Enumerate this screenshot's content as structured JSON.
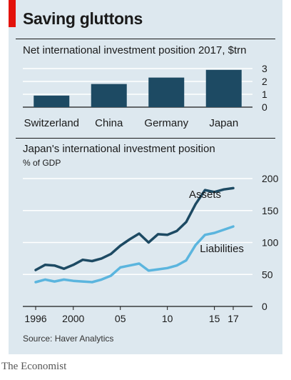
{
  "header": {
    "title": "Saving gluttons"
  },
  "source": "Source: Haver Analytics",
  "brand": "The Economist",
  "colors": {
    "accent_red": "#e3120b",
    "dark_series": "#1d4a63",
    "light_series": "#5bb5de",
    "background": "#dde8ef"
  },
  "chart_data": [
    {
      "type": "bar",
      "title": "Net international investment position 2017, $trn",
      "categories": [
        "Switzerland",
        "China",
        "Germany",
        "Japan"
      ],
      "values": [
        0.9,
        1.8,
        2.3,
        2.9
      ],
      "ylim": [
        0,
        3
      ],
      "yticks": [
        "0",
        "1",
        "2",
        "3"
      ],
      "grid": true
    },
    {
      "type": "line",
      "title": "Japan's international investment position",
      "ylabel": "% of GDP",
      "xlim": [
        1996,
        2017
      ],
      "ylim": [
        0,
        200
      ],
      "xticks": [
        {
          "value": 1996,
          "label": "1996"
        },
        {
          "value": 2000,
          "label": "2000"
        },
        {
          "value": 2005,
          "label": "05"
        },
        {
          "value": 2010,
          "label": "10"
        },
        {
          "value": 2015,
          "label": "15"
        },
        {
          "value": 2017,
          "label": "17"
        }
      ],
      "yticks": [
        "0",
        "50",
        "100",
        "150",
        "200"
      ],
      "grid": true,
      "x": [
        1996,
        1997,
        1998,
        1999,
        2000,
        2001,
        2002,
        2003,
        2004,
        2005,
        2006,
        2007,
        2008,
        2009,
        2010,
        2011,
        2012,
        2013,
        2014,
        2015,
        2016,
        2017
      ],
      "series": [
        {
          "name": "Assets",
          "values": [
            57,
            65,
            64,
            59,
            65,
            73,
            71,
            75,
            82,
            95,
            105,
            114,
            100,
            113,
            112,
            118,
            132,
            160,
            182,
            179,
            183,
            185
          ]
        },
        {
          "name": "Liabilities",
          "values": [
            38,
            42,
            39,
            42,
            40,
            39,
            38,
            42,
            48,
            61,
            64,
            67,
            56,
            58,
            60,
            64,
            72,
            96,
            112,
            115,
            120,
            125
          ]
        }
      ]
    }
  ]
}
